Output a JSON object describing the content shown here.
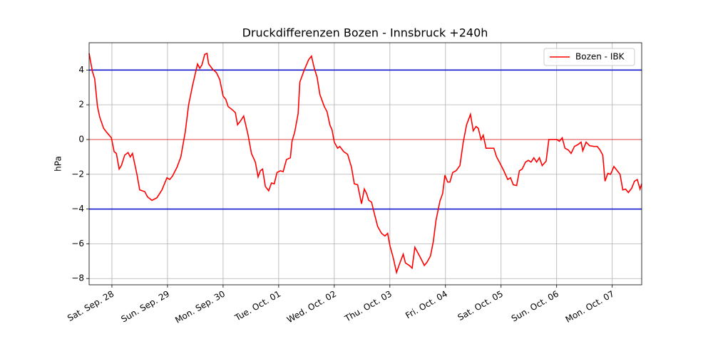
{
  "chart_data": {
    "type": "line",
    "title": "Druckdifferenzen Bozen - Innsbruck +240h",
    "y_label": "hPa",
    "xlim": [
      -0.41,
      9.53
    ],
    "xticks": [
      {
        "value": 0,
        "label": "Sat. Sep. 28"
      },
      {
        "value": 1,
        "label": "Sun. Sep. 29"
      },
      {
        "value": 2,
        "label": "Mon. Sep. 30"
      },
      {
        "value": 3,
        "label": "Tue. Oct. 01"
      },
      {
        "value": 4,
        "label": "Wed. Oct. 02"
      },
      {
        "value": 5,
        "label": "Thu. Oct. 03"
      },
      {
        "value": 6,
        "label": "Fri. Oct. 04"
      },
      {
        "value": 7,
        "label": "Sat. Oct. 05"
      },
      {
        "value": 8,
        "label": "Sun. Oct. 06"
      },
      {
        "value": 9,
        "label": "Mon. Oct. 07"
      }
    ],
    "ylim": [
      -8.36,
      5.57
    ],
    "yticks": [
      {
        "value": -8,
        "label": "−8"
      },
      {
        "value": -6,
        "label": "−6"
      },
      {
        "value": -4,
        "label": "−4"
      },
      {
        "value": -2,
        "label": "−2"
      },
      0,
      2,
      4
    ],
    "grid": true,
    "legend": "upper right",
    "hlines": [
      {
        "value": 4,
        "color": "#0000cc",
        "width": 1.5
      },
      {
        "value": -4,
        "color": "#0000cc",
        "width": 1.5
      },
      {
        "value": 0,
        "color": "#e03030",
        "width": 0.8
      }
    ],
    "x": [
      -0.41,
      -0.35,
      -0.31,
      -0.26,
      -0.22,
      -0.15,
      -0.09,
      -0.01,
      0.04,
      0.08,
      0.13,
      0.17,
      0.23,
      0.29,
      0.33,
      0.37,
      0.45,
      0.5,
      0.59,
      0.64,
      0.72,
      0.81,
      0.9,
      0.99,
      1.04,
      1.09,
      1.17,
      1.24,
      1.32,
      1.38,
      1.45,
      1.54,
      1.58,
      1.62,
      1.67,
      1.71,
      1.74,
      1.81,
      1.88,
      1.94,
      2.0,
      2.05,
      2.09,
      2.17,
      2.22,
      2.26,
      2.31,
      2.37,
      2.45,
      2.51,
      2.58,
      2.63,
      2.67,
      2.71,
      2.76,
      2.82,
      2.87,
      2.92,
      2.97,
      3.03,
      3.08,
      3.14,
      3.21,
      3.24,
      3.29,
      3.35,
      3.38,
      3.46,
      3.54,
      3.59,
      3.64,
      3.69,
      3.74,
      3.82,
      3.87,
      3.92,
      3.96,
      4.0,
      4.06,
      4.1,
      4.17,
      4.24,
      4.31,
      4.36,
      4.42,
      4.49,
      4.54,
      4.58,
      4.62,
      4.67,
      4.72,
      4.78,
      4.85,
      4.91,
      4.96,
      5.0,
      5.06,
      5.12,
      5.18,
      5.24,
      5.28,
      5.35,
      5.4,
      5.45,
      5.5,
      5.55,
      5.62,
      5.67,
      5.73,
      5.78,
      5.83,
      5.9,
      5.95,
      5.99,
      6.04,
      6.08,
      6.13,
      6.19,
      6.26,
      6.32,
      6.38,
      6.45,
      6.5,
      6.55,
      6.59,
      6.64,
      6.68,
      6.73,
      6.81,
      6.87,
      6.92,
      6.97,
      7.05,
      7.12,
      7.17,
      7.22,
      7.28,
      7.33,
      7.38,
      7.44,
      7.49,
      7.54,
      7.59,
      7.64,
      7.69,
      7.74,
      7.81,
      7.86,
      7.92,
      8.0,
      8.05,
      8.1,
      8.15,
      8.21,
      8.26,
      8.32,
      8.38,
      8.44,
      8.47,
      8.53,
      8.59,
      8.67,
      8.73,
      8.78,
      8.83,
      8.87,
      8.92,
      8.97,
      9.03,
      9.09,
      9.14,
      9.19,
      9.24,
      9.29,
      9.35,
      9.4,
      9.45,
      9.5,
      9.53
    ],
    "series": [
      {
        "name": "Bozen - IBK",
        "color": "#ff0000",
        "values": [
          4.96,
          3.9,
          3.5,
          1.9,
          1.3,
          0.65,
          0.4,
          0.1,
          -0.7,
          -0.8,
          -1.7,
          -1.5,
          -0.9,
          -0.75,
          -1.0,
          -0.8,
          -2.0,
          -2.9,
          -3.0,
          -3.3,
          -3.5,
          -3.35,
          -2.9,
          -2.2,
          -2.3,
          -2.1,
          -1.6,
          -1.0,
          0.45,
          2.0,
          3.1,
          4.35,
          4.1,
          4.3,
          4.9,
          4.96,
          4.35,
          4.05,
          3.85,
          3.45,
          2.5,
          2.3,
          1.9,
          1.7,
          1.55,
          0.85,
          1.05,
          1.35,
          0.25,
          -0.8,
          -1.3,
          -2.15,
          -1.8,
          -1.7,
          -2.7,
          -2.95,
          -2.5,
          -2.55,
          -1.9,
          -1.8,
          -1.85,
          -1.15,
          -1.05,
          -0.1,
          0.45,
          1.5,
          3.3,
          4.0,
          4.6,
          4.8,
          4.1,
          3.6,
          2.6,
          1.9,
          1.6,
          0.85,
          0.55,
          -0.15,
          -0.5,
          -0.4,
          -0.7,
          -0.85,
          -1.6,
          -2.55,
          -2.6,
          -3.7,
          -2.85,
          -3.1,
          -3.5,
          -3.6,
          -4.25,
          -5.0,
          -5.4,
          -5.55,
          -5.4,
          -6.1,
          -6.8,
          -7.65,
          -7.1,
          -6.6,
          -7.1,
          -7.25,
          -7.4,
          -6.2,
          -6.5,
          -6.8,
          -7.25,
          -7.05,
          -6.7,
          -5.9,
          -4.65,
          -3.55,
          -3.1,
          -2.05,
          -2.45,
          -2.45,
          -1.9,
          -1.8,
          -1.5,
          -0.15,
          0.85,
          1.45,
          0.5,
          0.75,
          0.65,
          0,
          0.25,
          -0.5,
          -0.5,
          -0.5,
          -1.0,
          -1.3,
          -1.8,
          -2.3,
          -2.2,
          -2.6,
          -2.65,
          -1.8,
          -1.7,
          -1.3,
          -1.2,
          -1.3,
          -1.05,
          -1.3,
          -1.05,
          -1.5,
          -1.25,
          0,
          0,
          0,
          -0.1,
          0.1,
          -0.5,
          -0.6,
          -0.8,
          -0.4,
          -0.3,
          -0.15,
          -0.65,
          -0.15,
          -0.35,
          -0.4,
          -0.4,
          -0.6,
          -0.9,
          -2.4,
          -1.95,
          -2.0,
          -1.55,
          -1.8,
          -2.0,
          -2.9,
          -2.85,
          -3.05,
          -2.8,
          -2.4,
          -2.3,
          -2.85,
          -2.55
        ]
      }
    ]
  }
}
